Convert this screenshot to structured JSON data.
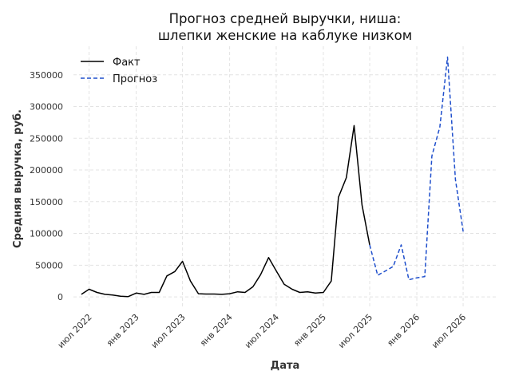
{
  "chart_data": {
    "type": "line",
    "title_line1": "Прогноз средней выручки, ниша:",
    "title_line2": "шлепки женские на каблуке низком",
    "xlabel": "Дата",
    "ylabel": "Средняя выручка, руб.",
    "ylim": [
      -15000,
      395000
    ],
    "xlim": [
      "2022-05-01",
      "2026-11-15"
    ],
    "yticks": [
      0,
      50000,
      100000,
      150000,
      200000,
      250000,
      300000,
      350000
    ],
    "xticks": [
      {
        "date": "2022-07-01",
        "label": "июл 2022"
      },
      {
        "date": "2023-01-01",
        "label": "янв 2023"
      },
      {
        "date": "2023-07-01",
        "label": "июл 2023"
      },
      {
        "date": "2024-01-01",
        "label": "янв 2024"
      },
      {
        "date": "2024-07-01",
        "label": "июл 2024"
      },
      {
        "date": "2025-01-01",
        "label": "янв 2025"
      },
      {
        "date": "2025-07-01",
        "label": "июл 2025"
      },
      {
        "date": "2026-01-01",
        "label": "янв 2026"
      },
      {
        "date": "2026-07-01",
        "label": "июл 2026"
      }
    ],
    "grid": true,
    "legend_position": "top-left",
    "series": [
      {
        "name": "Факт",
        "color": "#000000",
        "style": "solid",
        "points": [
          [
            "2022-06-01",
            4000
          ],
          [
            "2022-07-01",
            12000
          ],
          [
            "2022-08-01",
            7000
          ],
          [
            "2022-09-01",
            4000
          ],
          [
            "2022-10-01",
            3000
          ],
          [
            "2022-11-01",
            1000
          ],
          [
            "2022-12-01",
            500
          ],
          [
            "2023-01-01",
            6000
          ],
          [
            "2023-02-01",
            4000
          ],
          [
            "2023-03-01",
            7000
          ],
          [
            "2023-04-01",
            7000
          ],
          [
            "2023-05-01",
            33000
          ],
          [
            "2023-06-01",
            40000
          ],
          [
            "2023-07-01",
            56000
          ],
          [
            "2023-08-01",
            25000
          ],
          [
            "2023-09-01",
            5000
          ],
          [
            "2023-10-01",
            4500
          ],
          [
            "2023-11-01",
            4500
          ],
          [
            "2023-12-01",
            4000
          ],
          [
            "2024-01-01",
            5000
          ],
          [
            "2024-02-01",
            8000
          ],
          [
            "2024-03-01",
            7000
          ],
          [
            "2024-04-01",
            16000
          ],
          [
            "2024-05-01",
            35000
          ],
          [
            "2024-06-01",
            62000
          ],
          [
            "2024-07-01",
            41000
          ],
          [
            "2024-08-01",
            20000
          ],
          [
            "2024-09-01",
            12000
          ],
          [
            "2024-10-01",
            7000
          ],
          [
            "2024-11-01",
            8000
          ],
          [
            "2024-12-01",
            6000
          ],
          [
            "2025-01-01",
            7000
          ],
          [
            "2025-02-01",
            25000
          ],
          [
            "2025-03-01",
            157000
          ],
          [
            "2025-04-01",
            188000
          ],
          [
            "2025-05-01",
            270000
          ],
          [
            "2025-06-01",
            145000
          ],
          [
            "2025-07-01",
            82000
          ]
        ]
      },
      {
        "name": "Прогноз",
        "color": "#1f4fcc",
        "style": "dashed",
        "points": [
          [
            "2025-07-01",
            82000
          ],
          [
            "2025-08-01",
            34000
          ],
          [
            "2025-09-01",
            41000
          ],
          [
            "2025-10-01",
            48000
          ],
          [
            "2025-11-01",
            82000
          ],
          [
            "2025-12-01",
            27000
          ],
          [
            "2026-01-01",
            30000
          ],
          [
            "2026-02-01",
            32000
          ],
          [
            "2026-03-01",
            222000
          ],
          [
            "2026-04-01",
            268000
          ],
          [
            "2026-05-01",
            378000
          ],
          [
            "2026-06-01",
            185000
          ],
          [
            "2026-07-01",
            103000
          ]
        ]
      }
    ]
  }
}
